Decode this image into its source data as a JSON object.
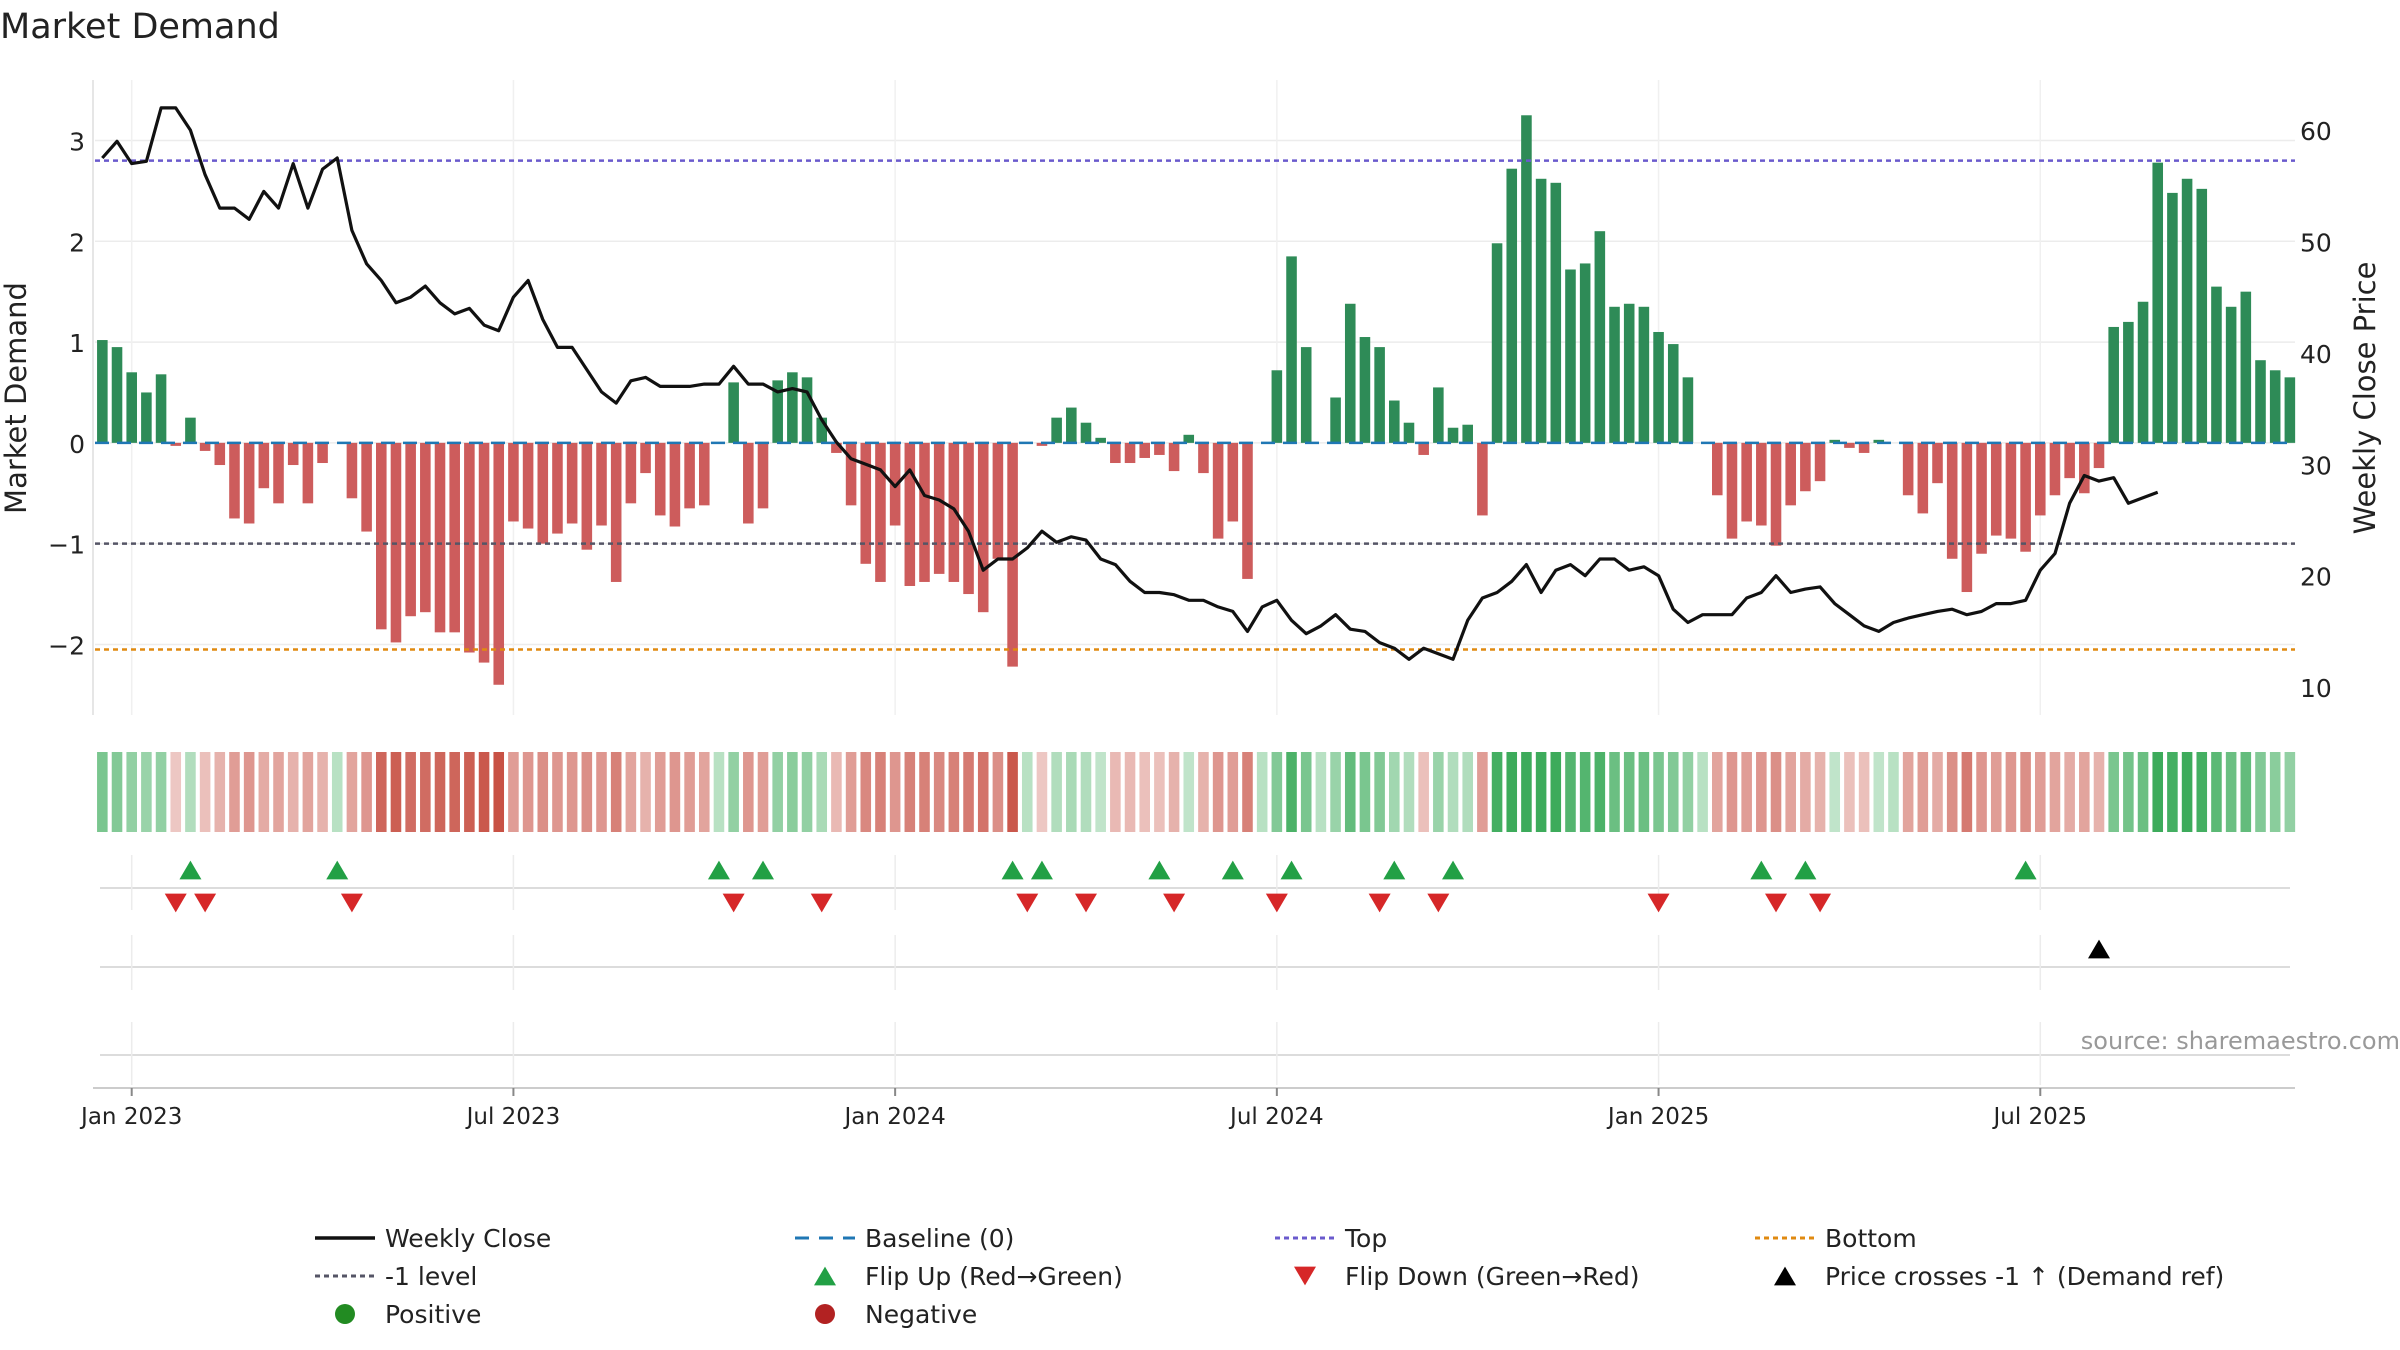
{
  "chart_data": {
    "type": "bar",
    "title": "Market Demand",
    "ylabel": "Market Demand",
    "y2label": "Weekly Close Price",
    "ylim": [
      -2.7,
      3.6
    ],
    "y2lim": [
      7.5,
      64.5
    ],
    "yticks": [
      "3",
      "2",
      "1",
      "0",
      "−1",
      "−2"
    ],
    "yticks_values": [
      3,
      2,
      1,
      0,
      -1,
      -2
    ],
    "y2ticks": [
      "60",
      "50",
      "40",
      "30",
      "20",
      "10"
    ],
    "y2ticks_values": [
      60,
      50,
      40,
      30,
      20,
      10
    ],
    "xticks": [
      "Jan 2023",
      "Jul 2023",
      "Jan 2024",
      "Jul 2024",
      "Jan 2025",
      "Jul 2025"
    ],
    "xticks_week": [
      2,
      28,
      54,
      80,
      106,
      132
    ],
    "reference_lines": {
      "top": 2.8,
      "minus_one": -1.0,
      "bottom": -2.05
    },
    "demand": [
      1.02,
      0.95,
      0.7,
      0.5,
      0.68,
      -0.03,
      0.25,
      -0.08,
      -0.22,
      -0.75,
      -0.8,
      -0.45,
      -0.6,
      -0.22,
      -0.6,
      -0.2,
      0,
      -0.55,
      -0.88,
      -1.85,
      -1.98,
      -1.72,
      -1.68,
      -1.88,
      -1.88,
      -2.08,
      -2.18,
      -2.4,
      -0.78,
      -0.85,
      -1.0,
      -0.9,
      -0.8,
      -1.06,
      -0.82,
      -1.38,
      -0.6,
      -0.3,
      -0.72,
      -0.83,
      -0.65,
      -0.62,
      0,
      0.6,
      -0.8,
      -0.65,
      0.62,
      0.7,
      0.65,
      0.25,
      -0.1,
      -0.62,
      -1.2,
      -1.38,
      -0.82,
      -1.42,
      -1.38,
      -1.3,
      -1.38,
      -1.5,
      -1.68,
      -1.15,
      -2.22,
      0,
      -0.03,
      0.25,
      0.35,
      0.2,
      0.05,
      -0.2,
      -0.2,
      -0.15,
      -0.12,
      -0.28,
      0.08,
      -0.3,
      -0.95,
      -0.78,
      -1.35,
      0,
      0.72,
      1.85,
      0.95,
      0,
      0.45,
      1.38,
      1.05,
      0.95,
      0.42,
      0.2,
      -0.12,
      0.55,
      0.15,
      0.18,
      -0.72,
      1.98,
      2.72,
      3.25,
      2.62,
      2.58,
      1.72,
      1.78,
      2.1,
      1.35,
      1.38,
      1.35,
      1.1,
      0.98,
      0.65,
      0,
      -0.52,
      -0.95,
      -0.78,
      -0.82,
      -1.02,
      -0.62,
      -0.48,
      -0.38,
      0.03,
      -0.05,
      -0.1,
      0.03,
      0,
      -0.52,
      -0.7,
      -0.4,
      -1.15,
      -1.48,
      -1.1,
      -0.92,
      -0.95,
      -1.08,
      -0.72,
      -0.52,
      -0.35,
      -0.5,
      -0.25,
      1.15,
      1.2,
      1.4,
      2.78,
      2.48,
      2.62,
      2.52,
      1.55,
      1.35,
      1.5,
      0.82,
      0.72,
      0.65
    ],
    "weekly_close": [
      57.5,
      59.0,
      57.0,
      57.2,
      62.0,
      62.0,
      60.0,
      56.0,
      53.0,
      53.0,
      52.0,
      54.5,
      53.0,
      57.0,
      53.0,
      56.5,
      57.5,
      51.0,
      48.0,
      46.5,
      44.5,
      45.0,
      46.0,
      44.5,
      43.5,
      44.0,
      42.5,
      42.0,
      45.0,
      46.5,
      43.0,
      40.5,
      40.5,
      38.5,
      36.5,
      35.5,
      37.5,
      37.8,
      37.0,
      37.0,
      37.0,
      37.2,
      37.2,
      38.8,
      37.2,
      37.2,
      36.5,
      36.8,
      36.5,
      34.0,
      32.0,
      30.5,
      30.0,
      29.5,
      28.0,
      29.5,
      27.2,
      26.8,
      26.0,
      24.0,
      20.5,
      21.5,
      21.5,
      22.5,
      24.0,
      23.0,
      23.5,
      23.2,
      21.5,
      21.0,
      19.5,
      18.5,
      18.5,
      18.3,
      17.8,
      17.8,
      17.2,
      16.8,
      15.0,
      17.2,
      17.8,
      16.0,
      14.8,
      15.5,
      16.5,
      15.2,
      15.0,
      14.0,
      13.5,
      12.5,
      13.5,
      13.0,
      12.5,
      16.0,
      18.0,
      18.5,
      19.5,
      21.0,
      18.5,
      20.5,
      21.0,
      20.0,
      21.5,
      21.5,
      20.5,
      20.8,
      20.0,
      17.0,
      15.8,
      16.5,
      16.5,
      16.5,
      18.0,
      18.5,
      20.0,
      18.5,
      18.8,
      19.0,
      17.5,
      16.5,
      15.5,
      15.0,
      15.8,
      16.2,
      16.5,
      16.8,
      17.0,
      16.5,
      16.8,
      17.5,
      17.5,
      17.8,
      20.5,
      22.0,
      26.5,
      29.0,
      28.5,
      28.8,
      26.5,
      27.0,
      27.5
    ],
    "heat_intensity": [
      0.6,
      0.55,
      0.45,
      0.4,
      0.45,
      0.15,
      0.25,
      0.2,
      0.3,
      0.45,
      0.5,
      0.35,
      0.4,
      0.3,
      0.4,
      0.3,
      0.2,
      0.4,
      0.5,
      0.85,
      0.9,
      0.8,
      0.8,
      0.85,
      0.85,
      0.9,
      0.95,
      1.0,
      0.45,
      0.5,
      0.55,
      0.5,
      0.5,
      0.55,
      0.5,
      0.65,
      0.4,
      0.3,
      0.45,
      0.5,
      0.45,
      0.4,
      0.2,
      0.45,
      0.5,
      0.45,
      0.45,
      0.5,
      0.45,
      0.3,
      0.25,
      0.45,
      0.6,
      0.65,
      0.5,
      0.65,
      0.65,
      0.6,
      0.65,
      0.7,
      0.75,
      0.55,
      0.95,
      0.2,
      0.15,
      0.25,
      0.3,
      0.25,
      0.15,
      0.25,
      0.25,
      0.2,
      0.2,
      0.3,
      0.15,
      0.3,
      0.5,
      0.45,
      0.65,
      0.2,
      0.55,
      0.9,
      0.6,
      0.2,
      0.4,
      0.75,
      0.6,
      0.55,
      0.35,
      0.25,
      0.2,
      0.4,
      0.25,
      0.25,
      0.45,
      0.95,
      1.0,
      1.0,
      1.0,
      1.0,
      0.85,
      0.85,
      0.9,
      0.7,
      0.7,
      0.7,
      0.6,
      0.55,
      0.45,
      0.2,
      0.4,
      0.5,
      0.45,
      0.5,
      0.55,
      0.4,
      0.35,
      0.3,
      0.15,
      0.2,
      0.2,
      0.15,
      0.2,
      0.4,
      0.45,
      0.35,
      0.55,
      0.7,
      0.5,
      0.45,
      0.5,
      0.55,
      0.45,
      0.4,
      0.35,
      0.4,
      0.3,
      0.6,
      0.65,
      0.7,
      1.0,
      0.95,
      1.0,
      0.95,
      0.8,
      0.7,
      0.75,
      0.55,
      0.5,
      0.45
    ],
    "flip_up_weeks": [
      6,
      16,
      42,
      45,
      62,
      64,
      72,
      77,
      81,
      88,
      92,
      113,
      116,
      131
    ],
    "flip_down_weeks": [
      5,
      7,
      17,
      43,
      49,
      63,
      67,
      73,
      80,
      87,
      91,
      106,
      114,
      117
    ],
    "price_cross_weeks": [
      136
    ],
    "colors": {
      "positive_bar": "#2e8b57",
      "negative_bar": "#cd5c5c",
      "close_line": "#111111",
      "baseline": "#1f77b4",
      "top": "#6a5acd",
      "minus_one": "#555566",
      "bottom": "#e08a10",
      "flip_up": "#22a045",
      "flip_down": "#d62728",
      "price_cross": "#000000",
      "heat_positive": "#22a045",
      "heat_negative": "#c0392b",
      "legend_positive": "#228b22",
      "legend_negative": "#b22222"
    },
    "legend": [
      {
        "label": "Weekly Close",
        "kind": "solid",
        "color": "#111111"
      },
      {
        "label": "Baseline (0)",
        "kind": "dashed",
        "color": "#1f77b4"
      },
      {
        "label": "Top",
        "kind": "dotted",
        "color": "#6a5acd"
      },
      {
        "label": "Bottom",
        "kind": "dotted",
        "color": "#e08a10"
      },
      {
        "label": "-1 level",
        "kind": "dotted",
        "color": "#555566"
      },
      {
        "label": "Flip Up (Red→Green)",
        "kind": "tri-up",
        "color": "#22a045"
      },
      {
        "label": "Flip Down (Green→Red)",
        "kind": "tri-down",
        "color": "#d62728"
      },
      {
        "label": "Price crosses -1 ↑ (Demand ref)",
        "kind": "tri-up",
        "color": "#000000"
      },
      {
        "label": "Positive",
        "kind": "dot",
        "color": "#228b22"
      },
      {
        "label": "Negative",
        "kind": "dot",
        "color": "#b22222"
      }
    ]
  },
  "watermark": "source: sharemaestro.com"
}
